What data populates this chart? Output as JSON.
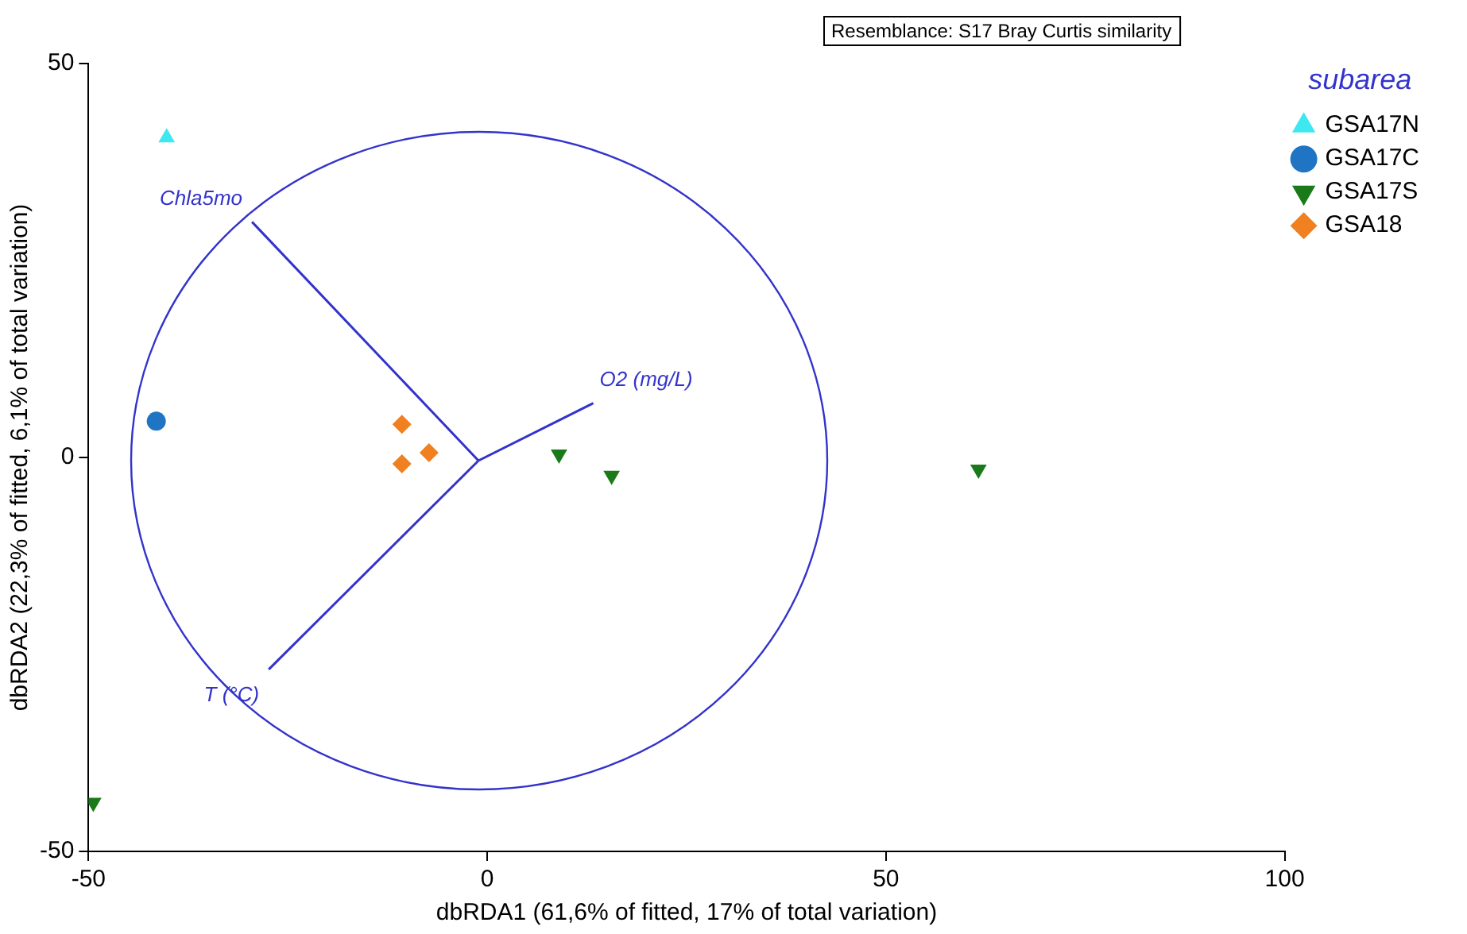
{
  "chart_data": {
    "type": "scatter",
    "xlabel": "dbRDA1 (61,6% of fitted, 17% of total variation)",
    "ylabel": "dbRDA2 (22,3% of fitted, 6,1% of total variation)",
    "legend_title": "subarea",
    "legend": "top right",
    "grid": false,
    "xlim": [
      -50,
      100
    ],
    "xticks": [
      -50,
      0,
      50,
      100
    ],
    "ylim": [
      -50,
      50
    ],
    "yticks": [
      -50,
      0,
      50
    ],
    "annotations": [
      "Resemblance: S17 Bray Curtis similarity"
    ],
    "series": [
      {
        "name": "GSA17N",
        "color": "#3ee8f0",
        "marker": "triangle",
        "x": [
          -40.2
        ],
        "values": [
          40.6
        ]
      },
      {
        "name": "GSA17C",
        "color": "#1f74c4",
        "marker": "circle",
        "x": [
          -41.5
        ],
        "values": [
          4.6
        ]
      },
      {
        "name": "GSA17S",
        "color": "#1a7a1a",
        "marker": "triangle-down",
        "x": [
          -49.4,
          9,
          15.6,
          61.6
        ],
        "values": [
          -43.8,
          0.4,
          -2.3,
          -1.5
        ]
      },
      {
        "name": "GSA18",
        "color": "#f08020",
        "marker": "diamond",
        "x": [
          -10.7,
          -10.7,
          -7.3
        ],
        "values": [
          4.2,
          -0.8,
          0.6
        ]
      },
      {
        "type": "line",
        "name": "Chla5mo",
        "color": "#3333cc",
        "x": [
          -29.5,
          -1.1
        ],
        "values": [
          29.9,
          -0.4
        ]
      },
      {
        "type": "line",
        "name": "O2 (mg/L)",
        "color": "#3333cc",
        "x": [
          -1.1,
          13.3
        ],
        "values": [
          -0.4,
          6.9
        ]
      },
      {
        "type": "line",
        "name": "T (°C)",
        "color": "#3333cc",
        "x": [
          -27.4,
          -1.1
        ],
        "values": [
          -26.9,
          -0.4
        ]
      }
    ]
  }
}
